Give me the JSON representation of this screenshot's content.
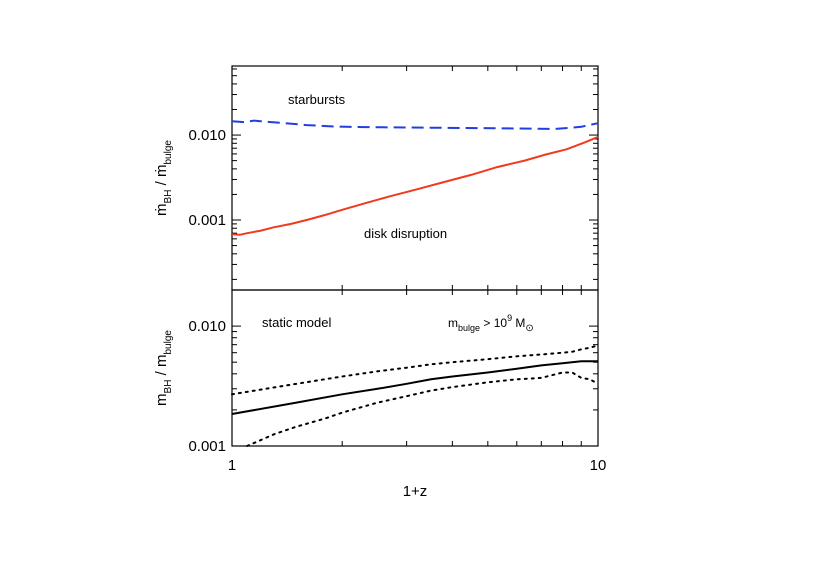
{
  "chart_data": [
    {
      "type": "line",
      "panel": "top",
      "ylabel": "ṁ_BH / ṁ_bulge",
      "ylabel_parts": {
        "main": "ṁ",
        "sub1": "BH",
        "sep": " / ",
        "main2": "ṁ",
        "sub2": "bulge"
      },
      "xscale": "log",
      "yscale": "log",
      "xlim": [
        1,
        10
      ],
      "ylim": [
        0.00015,
        0.065
      ],
      "yticks": [
        {
          "value": 0.001,
          "label": "0.001"
        },
        {
          "value": 0.01,
          "label": "0.010"
        }
      ],
      "annotations": [
        {
          "text": "starbursts",
          "x": 1.86,
          "y": 0.025
        },
        {
          "text": "disk disruption",
          "x": 3.65,
          "y": 0.00085
        }
      ],
      "series": [
        {
          "color": "#1f3fe0",
          "style": "dashed",
          "x": [
            1.0,
            1.08,
            1.15,
            1.25,
            1.4,
            1.6,
            1.9,
            2.3,
            2.8,
            3.5,
            4.3,
            5.3,
            6.5,
            7.6,
            8.3,
            9.0,
            10.0
          ],
          "y": [
            0.0145,
            0.0142,
            0.0148,
            0.0143,
            0.0138,
            0.0131,
            0.0126,
            0.0124,
            0.0123,
            0.0122,
            0.0121,
            0.012,
            0.0119,
            0.0118,
            0.0121,
            0.0125,
            0.0138
          ]
        },
        {
          "color": "#f03a1e",
          "style": "solid",
          "x": [
            1.0,
            1.05,
            1.1,
            1.2,
            1.3,
            1.45,
            1.6,
            1.8,
            2.0,
            2.3,
            2.7,
            3.2,
            3.8,
            4.5,
            5.3,
            6.3,
            7.2,
            8.2,
            9.2,
            10.0
          ],
          "y": [
            0.00068,
            0.00067,
            0.0007,
            0.00075,
            0.00082,
            0.0009,
            0.001,
            0.00115,
            0.00132,
            0.00157,
            0.0019,
            0.0023,
            0.0028,
            0.0034,
            0.0042,
            0.005,
            0.0059,
            0.0068,
            0.0082,
            0.0095
          ]
        }
      ]
    },
    {
      "type": "line",
      "panel": "bottom",
      "ylabel": "m_BH / m_bulge",
      "ylabel_parts": {
        "main": "m",
        "sub1": "BH",
        "sep": " / ",
        "main2": "m",
        "sub2": "bulge"
      },
      "xlabel": "1+z",
      "xscale": "log",
      "yscale": "log",
      "xlim": [
        1,
        10
      ],
      "ylim": [
        0.001,
        0.02
      ],
      "xticks": [
        {
          "value": 1,
          "label": "1"
        },
        {
          "value": 10,
          "label": "10"
        }
      ],
      "yticks": [
        {
          "value": 0.001,
          "label": "0.001"
        },
        {
          "value": 0.01,
          "label": "0.010"
        }
      ],
      "annotations": [
        {
          "text": "static model"
        }
      ],
      "condition": {
        "prefix": "m",
        "sub": "bulge",
        "middle": " > 10",
        "sup": "9",
        "suffix": " M",
        "sun_sub": "⊙"
      },
      "series": [
        {
          "color": "#000000",
          "style": "solid",
          "x": [
            1.0,
            1.5,
            2.0,
            2.5,
            3.0,
            3.5,
            4.0,
            5.0,
            6.0,
            7.0,
            8.0,
            9.0,
            10.0
          ],
          "y": [
            0.00185,
            0.0023,
            0.0027,
            0.003,
            0.0033,
            0.0036,
            0.0038,
            0.0041,
            0.0044,
            0.0047,
            0.0049,
            0.0051,
            0.0051
          ]
        },
        {
          "color": "#000000",
          "style": "dotted",
          "x": [
            1.0,
            1.5,
            2.0,
            2.5,
            3.0,
            3.5,
            4.0,
            5.0,
            6.0,
            7.0,
            8.0,
            8.5,
            9.0,
            9.5,
            10.0
          ],
          "y": [
            0.0027,
            0.0033,
            0.0038,
            0.0042,
            0.0045,
            0.0048,
            0.005,
            0.0053,
            0.0056,
            0.0058,
            0.006,
            0.0061,
            0.0064,
            0.0066,
            0.0069
          ]
        },
        {
          "color": "#000000",
          "style": "dotted",
          "x": [
            1.1,
            1.3,
            1.5,
            1.8,
            2.0,
            2.5,
            3.0,
            3.5,
            4.0,
            5.0,
            6.0,
            7.0,
            7.5,
            8.0,
            8.5,
            9.0,
            9.5,
            10.0
          ],
          "y": [
            0.001,
            0.00125,
            0.00145,
            0.0017,
            0.0019,
            0.0023,
            0.0026,
            0.0029,
            0.0031,
            0.0034,
            0.0036,
            0.0037,
            0.0039,
            0.0041,
            0.0041,
            0.0037,
            0.0036,
            0.0033
          ]
        }
      ]
    }
  ]
}
